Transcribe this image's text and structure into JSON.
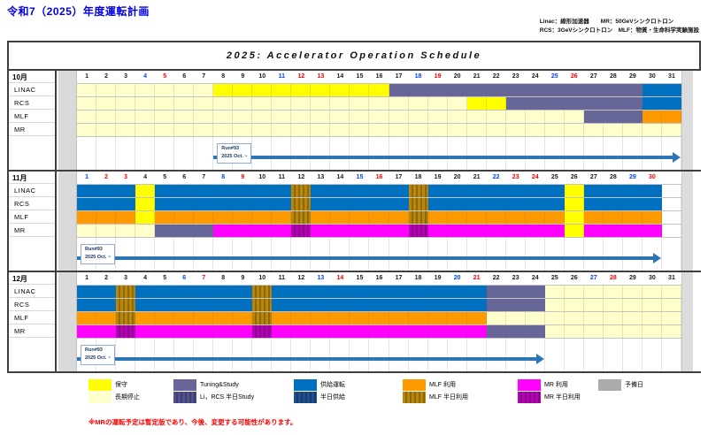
{
  "page_title": "令和7（2025）年度運転計画",
  "header_notes": {
    "line1": "Linac：線形加速器　　MR：50GeVシンクロトロン",
    "line2": "RCS：3GeVシンクロトロン　MLF：物質・生命科学実験施設"
  },
  "schedule_title": "2025:  Accelerator Operation Schedule",
  "weekday_colors": {
    "saturday": "#0044FF",
    "sunday_holiday": "#FF0000"
  },
  "palette": {
    "maintenance": "#FFFF00",
    "shutdown": "#FFFFCC",
    "tuning": "#666699",
    "tuning_half": "#50508C",
    "supply": "#0070C0",
    "supply_half": "#1F4E8C",
    "mlf": "#FF9900",
    "mlf_half": "#B8860B",
    "mr": "#FF00FF",
    "mr_half": "#B400B4",
    "reserve": "#ABABAB"
  },
  "months": [
    {
      "label": "10月",
      "days": 31,
      "saturdays": [
        4,
        11,
        18,
        25
      ],
      "holidays": [
        5,
        12,
        13,
        19,
        26
      ],
      "rows": [
        {
          "label": "LINAC",
          "segments": [
            {
              "from": 1,
              "to": 7,
              "type": "shutdown"
            },
            {
              "from": 8,
              "to": 16,
              "type": "maintenance"
            },
            {
              "from": 17,
              "to": 29,
              "type": "tuning"
            },
            {
              "from": 30,
              "to": 31,
              "type": "supply"
            }
          ]
        },
        {
          "label": "RCS",
          "segments": [
            {
              "from": 1,
              "to": 20,
              "type": "shutdown"
            },
            {
              "from": 21,
              "to": 22,
              "type": "maintenance"
            },
            {
              "from": 23,
              "to": 29,
              "type": "tuning"
            },
            {
              "from": 30,
              "to": 31,
              "type": "supply"
            }
          ]
        },
        {
          "label": "MLF",
          "segments": [
            {
              "from": 1,
              "to": 26,
              "type": "shutdown"
            },
            {
              "from": 27,
              "to": 29,
              "type": "tuning"
            },
            {
              "from": 30,
              "to": 31,
              "type": "mlf"
            }
          ]
        },
        {
          "label": "MR",
          "segments": [
            {
              "from": 1,
              "to": 31,
              "type": "shutdown"
            }
          ]
        }
      ],
      "run": {
        "label": "Run#93",
        "sublabel": "2025 Oct. ~",
        "box_day": 8,
        "arrow_from": 8,
        "arrow_to": 31
      }
    },
    {
      "label": "11月",
      "days": 30,
      "saturdays": [
        1,
        8,
        15,
        22,
        29
      ],
      "holidays": [
        2,
        3,
        9,
        16,
        23,
        24,
        30
      ],
      "rows": [
        {
          "label": "LINAC",
          "segments": [
            {
              "from": 1,
              "to": 3,
              "type": "supply"
            },
            {
              "from": 4,
              "to": 4,
              "type": "maintenance"
            },
            {
              "from": 5,
              "to": 11,
              "type": "supply"
            },
            {
              "from": 12,
              "to": 12,
              "type": "mlf_half"
            },
            {
              "from": 13,
              "to": 17,
              "type": "supply"
            },
            {
              "from": 18,
              "to": 18,
              "type": "mlf_half"
            },
            {
              "from": 19,
              "to": 25,
              "type": "supply"
            },
            {
              "from": 26,
              "to": 26,
              "type": "maintenance"
            },
            {
              "from": 27,
              "to": 30,
              "type": "supply"
            }
          ]
        },
        {
          "label": "RCS",
          "segments": [
            {
              "from": 1,
              "to": 3,
              "type": "supply"
            },
            {
              "from": 4,
              "to": 4,
              "type": "maintenance"
            },
            {
              "from": 5,
              "to": 11,
              "type": "supply"
            },
            {
              "from": 12,
              "to": 12,
              "type": "mlf_half"
            },
            {
              "from": 13,
              "to": 17,
              "type": "supply"
            },
            {
              "from": 18,
              "to": 18,
              "type": "mlf_half"
            },
            {
              "from": 19,
              "to": 25,
              "type": "supply"
            },
            {
              "from": 26,
              "to": 26,
              "type": "maintenance"
            },
            {
              "from": 27,
              "to": 30,
              "type": "supply"
            }
          ]
        },
        {
          "label": "MLF",
          "segments": [
            {
              "from": 1,
              "to": 3,
              "type": "mlf"
            },
            {
              "from": 4,
              "to": 4,
              "type": "maintenance"
            },
            {
              "from": 5,
              "to": 11,
              "type": "mlf"
            },
            {
              "from": 12,
              "to": 12,
              "type": "mlf_half"
            },
            {
              "from": 13,
              "to": 17,
              "type": "mlf"
            },
            {
              "from": 18,
              "to": 18,
              "type": "mlf_half"
            },
            {
              "from": 19,
              "to": 25,
              "type": "mlf"
            },
            {
              "from": 26,
              "to": 26,
              "type": "maintenance"
            },
            {
              "from": 27,
              "to": 30,
              "type": "mlf"
            }
          ]
        },
        {
          "label": "MR",
          "segments": [
            {
              "from": 1,
              "to": 4,
              "type": "shutdown"
            },
            {
              "from": 5,
              "to": 7,
              "type": "tuning"
            },
            {
              "from": 8,
              "to": 11,
              "type": "mr"
            },
            {
              "from": 12,
              "to": 12,
              "type": "mr_half"
            },
            {
              "from": 13,
              "to": 17,
              "type": "mr"
            },
            {
              "from": 18,
              "to": 18,
              "type": "mr_half"
            },
            {
              "from": 19,
              "to": 25,
              "type": "mr"
            },
            {
              "from": 26,
              "to": 26,
              "type": "maintenance"
            },
            {
              "from": 27,
              "to": 30,
              "type": "mr"
            }
          ]
        }
      ],
      "run": {
        "label": "Run#93",
        "sublabel": "2025 Oct. ~",
        "box_day": 1,
        "arrow_from": 1,
        "arrow_to": 30
      }
    },
    {
      "label": "12月",
      "days": 31,
      "saturdays": [
        6,
        13,
        20,
        27
      ],
      "holidays": [
        7,
        14,
        21,
        28
      ],
      "rows": [
        {
          "label": "LINAC",
          "segments": [
            {
              "from": 1,
              "to": 2,
              "type": "supply"
            },
            {
              "from": 3,
              "to": 3,
              "type": "mlf_half"
            },
            {
              "from": 4,
              "to": 9,
              "type": "supply"
            },
            {
              "from": 10,
              "to": 10,
              "type": "mlf_half"
            },
            {
              "from": 11,
              "to": 21,
              "type": "supply"
            },
            {
              "from": 22,
              "to": 24,
              "type": "tuning"
            },
            {
              "from": 25,
              "to": 31,
              "type": "shutdown"
            }
          ]
        },
        {
          "label": "RCS",
          "segments": [
            {
              "from": 1,
              "to": 2,
              "type": "supply"
            },
            {
              "from": 3,
              "to": 3,
              "type": "mlf_half"
            },
            {
              "from": 4,
              "to": 9,
              "type": "supply"
            },
            {
              "from": 10,
              "to": 10,
              "type": "mlf_half"
            },
            {
              "from": 11,
              "to": 21,
              "type": "supply"
            },
            {
              "from": 22,
              "to": 24,
              "type": "tuning"
            },
            {
              "from": 25,
              "to": 31,
              "type": "shutdown"
            }
          ]
        },
        {
          "label": "MLF",
          "segments": [
            {
              "from": 1,
              "to": 2,
              "type": "mlf"
            },
            {
              "from": 3,
              "to": 3,
              "type": "mlf_half"
            },
            {
              "from": 4,
              "to": 9,
              "type": "mlf"
            },
            {
              "from": 10,
              "to": 10,
              "type": "mlf_half"
            },
            {
              "from": 11,
              "to": 21,
              "type": "mlf"
            },
            {
              "from": 22,
              "to": 31,
              "type": "shutdown"
            }
          ]
        },
        {
          "label": "MR",
          "segments": [
            {
              "from": 1,
              "to": 2,
              "type": "mr"
            },
            {
              "from": 3,
              "to": 3,
              "type": "mr_half"
            },
            {
              "from": 4,
              "to": 9,
              "type": "mr"
            },
            {
              "from": 10,
              "to": 10,
              "type": "mr_half"
            },
            {
              "from": 11,
              "to": 21,
              "type": "mr"
            },
            {
              "from": 22,
              "to": 24,
              "type": "tuning"
            },
            {
              "from": 25,
              "to": 31,
              "type": "shutdown"
            }
          ]
        }
      ],
      "run": {
        "label": "Run#93",
        "sublabel": "2025 Oct. ~",
        "box_day": 1,
        "arrow_from": 1,
        "arrow_to": 24
      }
    }
  ],
  "legend": {
    "maintenance": "保守",
    "shutdown": "長期停止",
    "tuning": "Tuning&Study",
    "tuning_half": "Li，RCS 半日Study",
    "supply": "供給運転",
    "supply_half": "半日供給",
    "mlf": "MLF 利用",
    "mlf_half": "MLF 半日利用",
    "mr": "MR 利用",
    "mr_half": "MR 半日利用",
    "reserve": "予備日"
  },
  "bottom_note": "※MRの運転予定は暫定版であり、今後、変更する可能性があります。"
}
